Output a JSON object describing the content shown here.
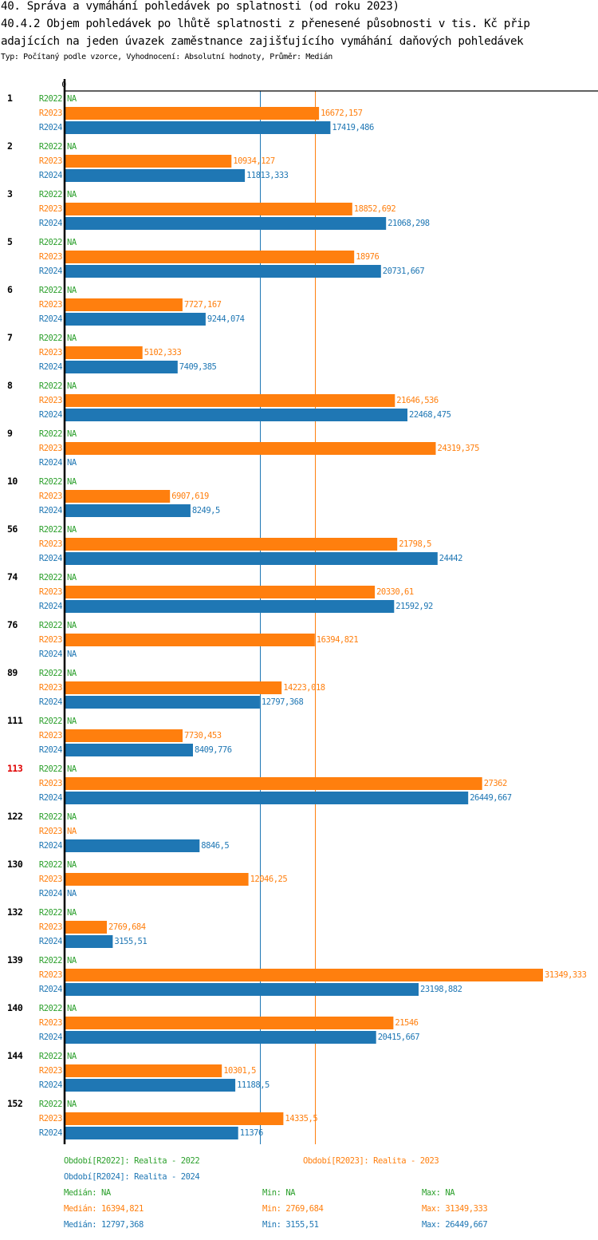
{
  "header": {
    "title_line1": "40. Správa a vymáhání pohledávek po splatnosti (od roku 2023)",
    "title_line2": "40.4.2 Objem pohledávek po lhůtě splatnosti z přenesené působnosti v tis. Kč přip",
    "title_line3": "adajících na jeden úvazek zaměstnance zajišťujícího vymáhání daňových pohledávek",
    "subtitle": "Typ: Počítaný podle vzorce, Vyhodnocení: Absolutní hodnoty, Průměr: Medián"
  },
  "colors": {
    "R2022": "#2ca02c",
    "R2023": "#ff7f0e",
    "R2024": "#1f77b4",
    "highlight": "#e00000",
    "axis": "#000000"
  },
  "chart_data": {
    "type": "bar",
    "orientation": "horizontal",
    "title": "40.4.2 Objem pohledávek po lhůtě splatnosti z přenesené působnosti v tis. Kč připadajících na jeden úvazek zaměstnance zajišťujícího vymáhání daňových pohledávek",
    "xlabel": "",
    "ylabel": "",
    "xlim": [
      0,
      31349.333
    ],
    "x_tick_labels": [
      "0"
    ],
    "grid": false,
    "na_label": "NA",
    "highlight_category": "113",
    "categories": [
      "1",
      "2",
      "3",
      "5",
      "6",
      "7",
      "8",
      "9",
      "10",
      "56",
      "74",
      "76",
      "89",
      "111",
      "113",
      "122",
      "130",
      "132",
      "139",
      "140",
      "144",
      "152"
    ],
    "series": [
      {
        "name": "R2022",
        "values": [
          null,
          null,
          null,
          null,
          null,
          null,
          null,
          null,
          null,
          null,
          null,
          null,
          null,
          null,
          null,
          null,
          null,
          null,
          null,
          null,
          null,
          null
        ],
        "labels": [
          "NA",
          "NA",
          "NA",
          "NA",
          "NA",
          "NA",
          "NA",
          "NA",
          "NA",
          "NA",
          "NA",
          "NA",
          "NA",
          "NA",
          "NA",
          "NA",
          "NA",
          "NA",
          "NA",
          "NA",
          "NA",
          "NA"
        ]
      },
      {
        "name": "R2023",
        "values": [
          16672.157,
          10934.127,
          18852.692,
          18976,
          7727.167,
          5102.333,
          21646.536,
          24319.375,
          6907.619,
          21798.5,
          20330.61,
          16394.821,
          14223.018,
          7730.453,
          27362,
          null,
          12046.25,
          2769.684,
          31349.333,
          21546,
          10301.5,
          14335.5
        ],
        "labels": [
          "16672,157",
          "10934,127",
          "18852,692",
          "18976",
          "7727,167",
          "5102,333",
          "21646,536",
          "24319,375",
          "6907,619",
          "21798,5",
          "20330,61",
          "16394,821",
          "14223,018",
          "7730,453",
          "27362",
          "NA",
          "12046,25",
          "2769,684",
          "31349,333",
          "21546",
          "10301,5",
          "14335,5"
        ]
      },
      {
        "name": "R2024",
        "values": [
          17419.486,
          11813.333,
          21068.298,
          20731.667,
          9244.074,
          7409.385,
          22468.475,
          null,
          8249.5,
          24442,
          21592.92,
          null,
          12797.368,
          8409.776,
          26449.667,
          8846.5,
          null,
          3155.51,
          23198.882,
          20415.667,
          11188.5,
          11376
        ],
        "labels": [
          "17419,486",
          "11813,333",
          "21068,298",
          "20731,667",
          "9244,074",
          "7409,385",
          "22468,475",
          "NA",
          "8249,5",
          "24442",
          "21592,92",
          "NA",
          "12797,368",
          "8409,776",
          "26449,667",
          "8846,5",
          "NA",
          "3155,51",
          "23198,882",
          "20415,667",
          "11188,5",
          "11376"
        ]
      }
    ],
    "reference_lines": [
      {
        "series": "R2024",
        "kind": "median",
        "value": 12797.368
      },
      {
        "series": "R2023",
        "kind": "median",
        "value": 16394.821
      }
    ],
    "legend": {
      "placement": "bottom",
      "entries": [
        {
          "series": "R2022",
          "text": "Období[R2022]: Realita - 2022"
        },
        {
          "series": "R2023",
          "text": "Období[R2023]: Realita - 2023"
        },
        {
          "series": "R2024",
          "text": "Období[R2024]: Realita - 2024"
        }
      ],
      "stats": [
        {
          "series": "R2022",
          "median": "Medián: NA",
          "min": "Min: NA",
          "max": "Max: NA"
        },
        {
          "series": "R2023",
          "median": "Medián: 16394,821",
          "min": "Min: 2769,684",
          "max": "Max: 31349,333"
        },
        {
          "series": "R2024",
          "median": "Medián: 12797,368",
          "min": "Min: 3155,51",
          "max": "Max: 26449,667"
        }
      ]
    }
  }
}
